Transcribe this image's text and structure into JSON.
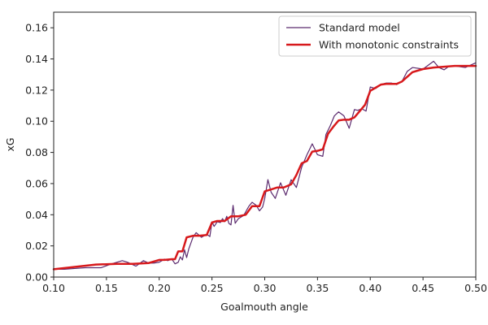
{
  "chart_data": {
    "type": "line",
    "xlabel": "Goalmouth angle",
    "ylabel": "xG",
    "xlim": [
      0.1,
      0.5
    ],
    "ylim": [
      0.0,
      0.17
    ],
    "xticks": [
      "0.10",
      "0.15",
      "0.20",
      "0.25",
      "0.30",
      "0.35",
      "0.40",
      "0.45",
      "0.50"
    ],
    "yticks": [
      "0.00",
      "0.02",
      "0.04",
      "0.06",
      "0.08",
      "0.10",
      "0.12",
      "0.14",
      "0.16"
    ],
    "grid": false,
    "legend_position": "top-right",
    "colors": {
      "standard": "#5b2a6e",
      "monotonic": "#d7191c"
    },
    "series": [
      {
        "name": "Standard model",
        "color": "#5b2a6e",
        "x": [
          0.1,
          0.11,
          0.12,
          0.13,
          0.145,
          0.155,
          0.165,
          0.17,
          0.178,
          0.185,
          0.19,
          0.195,
          0.2,
          0.205,
          0.208,
          0.212,
          0.215,
          0.218,
          0.22,
          0.222,
          0.224,
          0.226,
          0.228,
          0.232,
          0.235,
          0.24,
          0.245,
          0.248,
          0.25,
          0.252,
          0.255,
          0.258,
          0.26,
          0.262,
          0.264,
          0.266,
          0.268,
          0.27,
          0.272,
          0.275,
          0.28,
          0.285,
          0.288,
          0.292,
          0.295,
          0.298,
          0.3,
          0.303,
          0.306,
          0.31,
          0.315,
          0.32,
          0.325,
          0.33,
          0.335,
          0.34,
          0.345,
          0.35,
          0.355,
          0.358,
          0.362,
          0.366,
          0.37,
          0.375,
          0.38,
          0.385,
          0.388,
          0.392,
          0.396,
          0.4,
          0.405,
          0.41,
          0.415,
          0.42,
          0.425,
          0.43,
          0.435,
          0.44,
          0.45,
          0.46,
          0.465,
          0.47,
          0.475,
          0.48,
          0.49,
          0.5
        ],
        "y": [
          0.005,
          0.005,
          0.0055,
          0.006,
          0.006,
          0.0085,
          0.0105,
          0.0095,
          0.007,
          0.0105,
          0.009,
          0.009,
          0.0095,
          0.0115,
          0.0105,
          0.0115,
          0.0085,
          0.0095,
          0.013,
          0.011,
          0.0175,
          0.0125,
          0.018,
          0.0255,
          0.0285,
          0.0255,
          0.0275,
          0.026,
          0.0355,
          0.0325,
          0.0355,
          0.035,
          0.0375,
          0.0355,
          0.039,
          0.0345,
          0.0335,
          0.046,
          0.0345,
          0.0375,
          0.0395,
          0.0455,
          0.048,
          0.046,
          0.0425,
          0.045,
          0.0505,
          0.0625,
          0.0545,
          0.0505,
          0.0605,
          0.0525,
          0.0625,
          0.0575,
          0.0705,
          0.0785,
          0.0855,
          0.0785,
          0.0775,
          0.0915,
          0.097,
          0.1035,
          0.106,
          0.1035,
          0.0955,
          0.1075,
          0.107,
          0.108,
          0.1065,
          0.122,
          0.121,
          0.1235,
          0.1245,
          0.1245,
          0.1235,
          0.1255,
          0.132,
          0.1345,
          0.1335,
          0.1385,
          0.1345,
          0.133,
          0.1355,
          0.1355,
          0.1345,
          0.1375
        ]
      },
      {
        "name": "With monotonic constraints",
        "color": "#d7191c",
        "x": [
          0.1,
          0.12,
          0.14,
          0.16,
          0.175,
          0.19,
          0.2,
          0.205,
          0.212,
          0.215,
          0.218,
          0.222,
          0.226,
          0.232,
          0.238,
          0.245,
          0.25,
          0.255,
          0.262,
          0.268,
          0.275,
          0.282,
          0.288,
          0.295,
          0.3,
          0.305,
          0.312,
          0.318,
          0.325,
          0.33,
          0.335,
          0.34,
          0.345,
          0.35,
          0.355,
          0.36,
          0.365,
          0.37,
          0.375,
          0.38,
          0.385,
          0.39,
          0.395,
          0.4,
          0.405,
          0.41,
          0.415,
          0.42,
          0.425,
          0.43,
          0.435,
          0.44,
          0.45,
          0.46,
          0.47,
          0.48,
          0.49,
          0.5
        ],
        "y": [
          0.005,
          0.0065,
          0.008,
          0.0085,
          0.0085,
          0.009,
          0.011,
          0.011,
          0.0115,
          0.0115,
          0.0165,
          0.0165,
          0.0255,
          0.0265,
          0.0265,
          0.027,
          0.035,
          0.036,
          0.036,
          0.039,
          0.039,
          0.04,
          0.0455,
          0.0455,
          0.055,
          0.056,
          0.0575,
          0.0575,
          0.0595,
          0.0655,
          0.073,
          0.0745,
          0.0805,
          0.081,
          0.082,
          0.092,
          0.0965,
          0.1005,
          0.101,
          0.101,
          0.1025,
          0.1065,
          0.1105,
          0.1195,
          0.1215,
          0.1235,
          0.124,
          0.124,
          0.124,
          0.1255,
          0.1285,
          0.1315,
          0.1335,
          0.1345,
          0.135,
          0.1355,
          0.1355,
          0.1355
        ]
      }
    ]
  }
}
